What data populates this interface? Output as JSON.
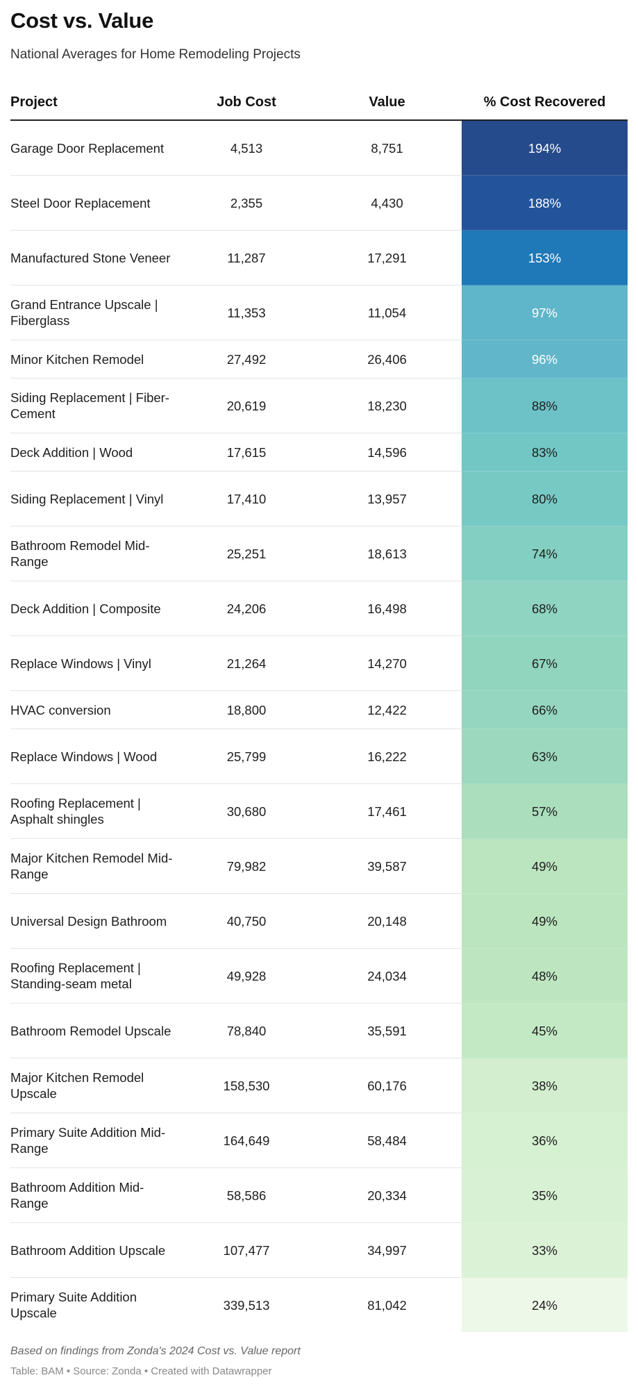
{
  "title": "Cost vs. Value",
  "subtitle": "National Averages for Home Remodeling Projects",
  "note": "Based on findings from Zonda's 2024 Cost vs. Value report",
  "credits": "Table: BAM • Source: Zonda • Created with Datawrapper",
  "chart_data": {
    "type": "table",
    "columns": [
      "Project",
      "Job Cost",
      "Value",
      "% Cost Recovered"
    ],
    "rows": [
      {
        "project": "Garage Door Replacement",
        "job_cost": "4,513",
        "value": "8,751",
        "pct": "194%",
        "pct_value": 194,
        "color": "#254b8c",
        "text_color": "#ffffff"
      },
      {
        "project": "Steel Door Replacement",
        "job_cost": "2,355",
        "value": "4,430",
        "pct": "188%",
        "pct_value": 188,
        "color": "#23539b",
        "text_color": "#ffffff"
      },
      {
        "project": "Manufactured Stone Veneer",
        "job_cost": "11,287",
        "value": "17,291",
        "pct": "153%",
        "pct_value": 153,
        "color": "#1f78b8",
        "text_color": "#ffffff"
      },
      {
        "project": "Grand Entrance Upscale | Fiberglass",
        "job_cost": "11,353",
        "value": "11,054",
        "pct": "97%",
        "pct_value": 97,
        "color": "#5fb5c9",
        "text_color": "#ffffff"
      },
      {
        "project": "Minor Kitchen Remodel",
        "job_cost": "27,492",
        "value": "26,406",
        "pct": "96%",
        "pct_value": 96,
        "color": "#61b7c9",
        "text_color": "#ffffff"
      },
      {
        "project": "Siding Replacement | Fiber-Cement",
        "job_cost": "20,619",
        "value": "18,230",
        "pct": "88%",
        "pct_value": 88,
        "color": "#6cc2c6",
        "text_color": "#1e1e1e"
      },
      {
        "project": "Deck Addition | Wood",
        "job_cost": "17,615",
        "value": "14,596",
        "pct": "83%",
        "pct_value": 83,
        "color": "#72c7c5",
        "text_color": "#1e1e1e"
      },
      {
        "project": "Siding Replacement | Vinyl",
        "job_cost": "17,410",
        "value": "13,957",
        "pct": "80%",
        "pct_value": 80,
        "color": "#77c9c4",
        "text_color": "#1e1e1e"
      },
      {
        "project": "Bathroom Remodel Mid-Range",
        "job_cost": "25,251",
        "value": "18,613",
        "pct": "74%",
        "pct_value": 74,
        "color": "#83cfc1",
        "text_color": "#1e1e1e"
      },
      {
        "project": "Deck Addition | Composite",
        "job_cost": "24,206",
        "value": "16,498",
        "pct": "68%",
        "pct_value": 68,
        "color": "#8fd4c0",
        "text_color": "#1e1e1e"
      },
      {
        "project": "Replace Windows | Vinyl",
        "job_cost": "21,264",
        "value": "14,270",
        "pct": "67%",
        "pct_value": 67,
        "color": "#92d5bf",
        "text_color": "#1e1e1e"
      },
      {
        "project": "HVAC conversion",
        "job_cost": "18,800",
        "value": "12,422",
        "pct": "66%",
        "pct_value": 66,
        "color": "#94d6bf",
        "text_color": "#1e1e1e"
      },
      {
        "project": "Replace Windows | Wood",
        "job_cost": "25,799",
        "value": "16,222",
        "pct": "63%",
        "pct_value": 63,
        "color": "#9cd8bd",
        "text_color": "#1e1e1e"
      },
      {
        "project": "Roofing Replacement | Asphalt shingles",
        "job_cost": "30,680",
        "value": "17,461",
        "pct": "57%",
        "pct_value": 57,
        "color": "#aadebc",
        "text_color": "#1e1e1e"
      },
      {
        "project": "Major Kitchen Remodel Mid-Range",
        "job_cost": "79,982",
        "value": "39,587",
        "pct": "49%",
        "pct_value": 49,
        "color": "#bbe5bf",
        "text_color": "#1e1e1e"
      },
      {
        "project": "Universal Design Bathroom",
        "job_cost": "40,750",
        "value": "20,148",
        "pct": "49%",
        "pct_value": 49,
        "color": "#bbe5bf",
        "text_color": "#1e1e1e"
      },
      {
        "project": "Roofing Replacement | Standing-seam metal",
        "job_cost": "49,928",
        "value": "24,034",
        "pct": "48%",
        "pct_value": 48,
        "color": "#bde6c0",
        "text_color": "#1e1e1e"
      },
      {
        "project": "Bathroom Remodel Upscale",
        "job_cost": "78,840",
        "value": "35,591",
        "pct": "45%",
        "pct_value": 45,
        "color": "#c3e9c4",
        "text_color": "#1e1e1e"
      },
      {
        "project": "Major Kitchen Remodel Upscale",
        "job_cost": "158,530",
        "value": "60,176",
        "pct": "38%",
        "pct_value": 38,
        "color": "#d2eecf",
        "text_color": "#1e1e1e"
      },
      {
        "project": "Primary Suite Addition Mid-Range",
        "job_cost": "164,649",
        "value": "58,484",
        "pct": "36%",
        "pct_value": 36,
        "color": "#d6f0d2",
        "text_color": "#1e1e1e"
      },
      {
        "project": "Bathroom Addition Mid-Range",
        "job_cost": "58,586",
        "value": "20,334",
        "pct": "35%",
        "pct_value": 35,
        "color": "#d8f0d4",
        "text_color": "#1e1e1e"
      },
      {
        "project": "Bathroom Addition Upscale",
        "job_cost": "107,477",
        "value": "34,997",
        "pct": "33%",
        "pct_value": 33,
        "color": "#dcf2d7",
        "text_color": "#1e1e1e"
      },
      {
        "project": "Primary Suite Addition Upscale",
        "job_cost": "339,513",
        "value": "81,042",
        "pct": "24%",
        "pct_value": 24,
        "color": "#eef8e8",
        "text_color": "#1e1e1e"
      }
    ]
  }
}
